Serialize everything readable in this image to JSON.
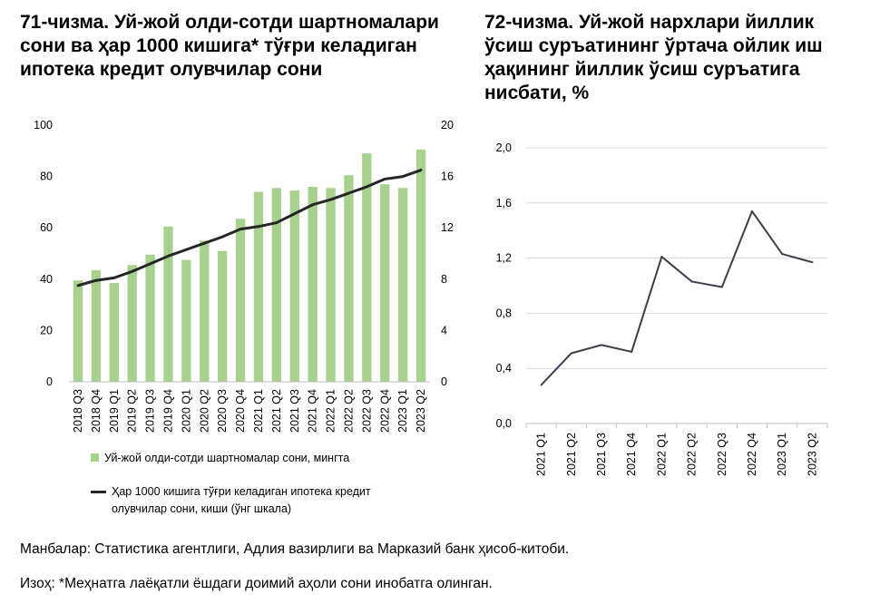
{
  "titles": {
    "left": "71-чизма. Уй-жой олди-сотди шартномалари сони ва ҳар 1000 кишига* тўғри келадиган ипотека кредит олувчилар сони",
    "right": "72-чизма. Уй-жой нархлари йиллик ўсиш суръатининг ўртача ойлик иш ҳақининг йиллик ўсиш суръатига нисбати, %"
  },
  "legend": {
    "bars": "Уй-жой олди-сотди шартномалар сони, мингта",
    "line": "Ҳар 1000 кишига тўғри келадиган ипотека кредит олувчилар сони, киши (ўнг шкала)"
  },
  "footer": {
    "source": "Манбалар: Статистика агентлиги, Адлия вазирлиги ва Марказий банк ҳисоб-китоби.",
    "note": "Изоҳ: *Меҳнатга лаёқатли ёшдаги доимий аҳоли сони инобатга олинган."
  },
  "colors": {
    "bar": "#a9d18e",
    "line": "#262626",
    "line2": "#3a3f4b",
    "grid": "#d9d9d9"
  },
  "chart_data": [
    {
      "type": "bar",
      "categories": [
        "2018 Q3",
        "2018 Q4",
        "2019 Q1",
        "2019 Q2",
        "2019 Q3",
        "2019 Q4",
        "2020 Q1",
        "2020 Q2",
        "2020 Q3",
        "2020 Q4",
        "2021 Q1",
        "2021 Q2",
        "2021 Q3",
        "2021 Q4",
        "2022 Q1",
        "2022 Q2",
        "2022 Q3",
        "2022 Q4",
        "2023 Q1",
        "2023 Q2"
      ],
      "series": [
        {
          "name": "Уй-жой олди-сотди шартномалар сони, мингта",
          "type": "bar",
          "axis": "left",
          "values": [
            39.5,
            43.5,
            38.5,
            45.5,
            49.5,
            60.5,
            47.5,
            55,
            51,
            63.5,
            74,
            75.5,
            74.5,
            76,
            75.5,
            80.5,
            89,
            77,
            75.5,
            90.5
          ]
        },
        {
          "name": "Ҳар 1000 кишига тўғри келадиган ипотека кредит олувчилар сони, киши (ўнг шкала)",
          "type": "line",
          "axis": "right",
          "values": [
            7.5,
            7.9,
            8.1,
            8.6,
            9.2,
            9.8,
            10.3,
            10.8,
            11.3,
            11.9,
            12.1,
            12.4,
            13.1,
            13.8,
            14.2,
            14.7,
            15.2,
            15.8,
            16.0,
            16.5
          ]
        }
      ],
      "ylim": [
        0,
        100
      ],
      "yticks": [
        "0",
        "20",
        "40",
        "60",
        "80",
        "100"
      ],
      "y2lim": [
        0,
        20
      ],
      "y2ticks": [
        "0",
        "4",
        "8",
        "12",
        "16",
        "20"
      ],
      "grid": false,
      "legend_position": "bottom"
    },
    {
      "type": "line",
      "categories": [
        "2021 Q1",
        "2021 Q2",
        "2021 Q3",
        "2021 Q4",
        "2022 Q1",
        "2022 Q2",
        "2022 Q3",
        "2022 Q4",
        "2023 Q1",
        "2023 Q2"
      ],
      "values": [
        0.28,
        0.51,
        0.57,
        0.52,
        1.21,
        1.03,
        0.99,
        1.54,
        1.23,
        1.17
      ],
      "ylim": [
        0,
        2.0
      ],
      "yticks": [
        "0,0",
        "0,4",
        "0,8",
        "1,2",
        "1,6",
        "2,0"
      ],
      "grid": true
    }
  ]
}
